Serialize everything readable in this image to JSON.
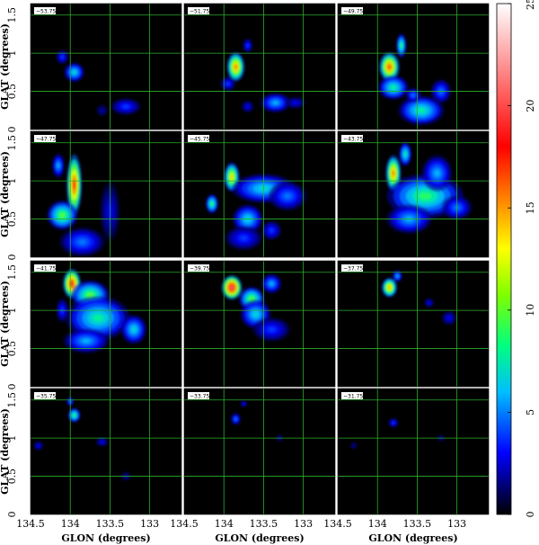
{
  "chart_data": {
    "type": "heatmap",
    "layout": {
      "rows": 4,
      "cols": 3
    },
    "xlabel": "GLON (degrees)",
    "ylabel": "GLAT (degrees)",
    "xlim": [
      134.5,
      132.6
    ],
    "ylim": [
      0,
      1.65
    ],
    "xticks": [
      "134.5",
      "134",
      "133.5",
      "133"
    ],
    "xtick_values": [
      134.5,
      134.0,
      133.5,
      133.0
    ],
    "yticks": [
      "0",
      "0.5",
      "1",
      "1.5"
    ],
    "ytick_values": [
      0,
      0.5,
      1.0,
      1.5
    ],
    "grid": true,
    "grid_color": "#2bb12b",
    "colorbar": {
      "min": 0,
      "max": 25,
      "ticks": [
        "0",
        "5",
        "10",
        "15",
        "20",
        "25"
      ],
      "tick_values": [
        0,
        5,
        10,
        15,
        20,
        25
      ],
      "colormap": "rainbow-black-to-white"
    },
    "panels": [
      {
        "label": "−53.75",
        "blobs": [
          [
            133.95,
            0.75,
            0.08,
            0.08,
            7
          ],
          [
            134.1,
            0.95,
            0.05,
            0.06,
            4
          ],
          [
            133.3,
            0.3,
            0.12,
            0.07,
            4
          ],
          [
            133.6,
            0.25,
            0.05,
            0.05,
            2
          ]
        ]
      },
      {
        "label": "−51.75",
        "blobs": [
          [
            133.85,
            0.82,
            0.07,
            0.12,
            16
          ],
          [
            133.7,
            1.1,
            0.04,
            0.06,
            4
          ],
          [
            133.95,
            0.6,
            0.06,
            0.06,
            4
          ],
          [
            133.35,
            0.35,
            0.12,
            0.08,
            6
          ],
          [
            133.7,
            0.3,
            0.05,
            0.05,
            3
          ],
          [
            133.1,
            0.35,
            0.08,
            0.05,
            3
          ]
        ]
      },
      {
        "label": "−49.75",
        "blobs": [
          [
            133.85,
            0.82,
            0.08,
            0.12,
            17
          ],
          [
            133.7,
            1.1,
            0.04,
            0.1,
            9
          ],
          [
            133.8,
            0.55,
            0.12,
            0.1,
            8
          ],
          [
            133.45,
            0.25,
            0.18,
            0.12,
            8
          ],
          [
            133.2,
            0.5,
            0.08,
            0.1,
            5
          ],
          [
            133.55,
            0.45,
            0.06,
            0.06,
            5
          ]
        ]
      },
      {
        "label": "−47.75",
        "blobs": [
          [
            133.95,
            0.95,
            0.06,
            0.25,
            18
          ],
          [
            134.1,
            0.55,
            0.12,
            0.12,
            10
          ],
          [
            133.85,
            0.2,
            0.18,
            0.12,
            5
          ],
          [
            134.15,
            1.2,
            0.05,
            0.1,
            6
          ],
          [
            133.5,
            0.6,
            0.08,
            0.25,
            3
          ]
        ]
      },
      {
        "label": "−45.75",
        "blobs": [
          [
            133.9,
            1.05,
            0.06,
            0.12,
            14
          ],
          [
            134.15,
            0.7,
            0.05,
            0.08,
            9
          ],
          [
            133.7,
            0.5,
            0.12,
            0.12,
            7
          ],
          [
            133.5,
            0.9,
            0.25,
            0.12,
            7
          ],
          [
            133.2,
            0.8,
            0.15,
            0.12,
            5
          ],
          [
            133.75,
            0.25,
            0.15,
            0.1,
            4
          ],
          [
            133.4,
            0.35,
            0.08,
            0.08,
            4
          ]
        ]
      },
      {
        "label": "−43.75",
        "blobs": [
          [
            133.8,
            1.1,
            0.06,
            0.15,
            16
          ],
          [
            133.65,
            1.35,
            0.05,
            0.1,
            8
          ],
          [
            133.4,
            0.8,
            0.3,
            0.18,
            9
          ],
          [
            133.25,
            1.1,
            0.12,
            0.15,
            6
          ],
          [
            133.6,
            0.5,
            0.18,
            0.12,
            6
          ],
          [
            133.0,
            0.65,
            0.12,
            0.1,
            5
          ]
        ]
      },
      {
        "label": "−41.75",
        "blobs": [
          [
            133.98,
            1.35,
            0.07,
            0.12,
            19
          ],
          [
            133.75,
            1.2,
            0.15,
            0.12,
            10
          ],
          [
            133.65,
            0.9,
            0.25,
            0.18,
            8
          ],
          [
            133.2,
            0.75,
            0.1,
            0.12,
            7
          ],
          [
            133.8,
            0.6,
            0.18,
            0.1,
            6
          ],
          [
            134.1,
            1.0,
            0.05,
            0.1,
            4
          ]
        ]
      },
      {
        "label": "−39.75",
        "blobs": [
          [
            133.9,
            1.3,
            0.08,
            0.1,
            21
          ],
          [
            133.65,
            1.15,
            0.1,
            0.1,
            10
          ],
          [
            133.6,
            0.95,
            0.12,
            0.12,
            7
          ],
          [
            133.4,
            1.35,
            0.08,
            0.08,
            6
          ],
          [
            133.4,
            0.75,
            0.15,
            0.1,
            4
          ]
        ]
      },
      {
        "label": "−37.75",
        "blobs": [
          [
            133.85,
            1.3,
            0.06,
            0.08,
            15
          ],
          [
            133.75,
            1.45,
            0.04,
            0.05,
            6
          ],
          [
            133.35,
            1.1,
            0.04,
            0.04,
            3
          ],
          [
            133.1,
            0.9,
            0.06,
            0.06,
            3
          ]
        ]
      },
      {
        "label": "−35.75",
        "blobs": [
          [
            133.95,
            1.3,
            0.05,
            0.06,
            9
          ],
          [
            134.0,
            1.48,
            0.03,
            0.04,
            5
          ],
          [
            134.4,
            0.9,
            0.04,
            0.04,
            3
          ],
          [
            133.6,
            0.95,
            0.05,
            0.04,
            3
          ],
          [
            133.3,
            0.5,
            0.04,
            0.04,
            2
          ]
        ]
      },
      {
        "label": "−33.75",
        "blobs": [
          [
            133.85,
            1.25,
            0.04,
            0.05,
            5
          ],
          [
            133.75,
            1.45,
            0.03,
            0.03,
            3
          ],
          [
            133.3,
            1.0,
            0.03,
            0.03,
            2
          ]
        ]
      },
      {
        "label": "−31.75",
        "blobs": [
          [
            133.8,
            1.2,
            0.04,
            0.04,
            4
          ],
          [
            134.3,
            0.9,
            0.03,
            0.03,
            2
          ],
          [
            133.2,
            1.0,
            0.03,
            0.03,
            2
          ]
        ]
      }
    ]
  }
}
